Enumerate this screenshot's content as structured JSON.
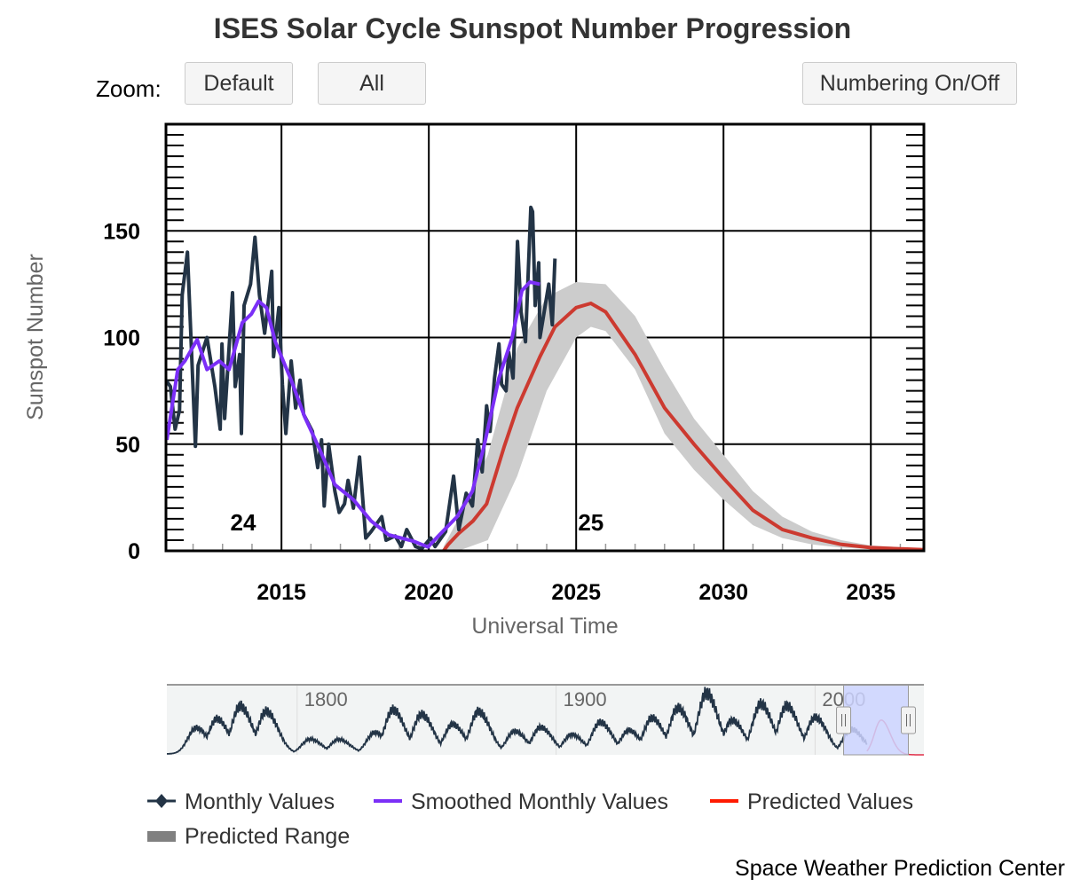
{
  "title": "ISES Solar Cycle Sunspot Number Progression",
  "zoom": {
    "label": "Zoom:",
    "default": "Default",
    "all": "All",
    "numbering": "Numbering On/Off"
  },
  "credit": "Space Weather Prediction Center",
  "colors": {
    "monthly": "#233446",
    "smoothed": "#7b2ff7",
    "predicted": "#cc3a30",
    "range": "#cccccc",
    "legend_predicted": "#ff1a00",
    "legend_range": "#808080",
    "nav_sel": "#ccd3ff"
  },
  "chart_data": {
    "type": "line",
    "title": "ISES Solar Cycle Sunspot Number Progression",
    "xlabel": "Universal Time",
    "ylabel": "Sunspot Number",
    "xlim": [
      2011.08,
      2036.8
    ],
    "ylim": [
      0,
      200
    ],
    "xticks": [
      2015,
      2020,
      2025,
      2030,
      2035
    ],
    "yticks": [
      0,
      50,
      100,
      150
    ],
    "cycle_labels": [
      {
        "text": "24",
        "year": 2013.7
      },
      {
        "text": "25",
        "year": 2025.5
      }
    ],
    "legend": [
      "Monthly Values",
      "Smoothed Monthly Values",
      "Predicted Values",
      "Predicted Range"
    ],
    "legend_placement": "bottom",
    "series": [
      {
        "name": "Monthly Values",
        "points": [
          [
            2011.08,
            80
          ],
          [
            2011.23,
            77
          ],
          [
            2011.39,
            57
          ],
          [
            2011.54,
            66
          ],
          [
            2011.63,
            120
          ],
          [
            2011.81,
            140
          ],
          [
            2012.08,
            49
          ],
          [
            2012.17,
            87
          ],
          [
            2012.47,
            100
          ],
          [
            2012.74,
            77
          ],
          [
            2012.92,
            57
          ],
          [
            2012.98,
            97
          ],
          [
            2013.07,
            62
          ],
          [
            2013.34,
            121
          ],
          [
            2013.43,
            77
          ],
          [
            2013.58,
            92
          ],
          [
            2013.64,
            55
          ],
          [
            2013.73,
            115
          ],
          [
            2013.95,
            125
          ],
          [
            2014.1,
            147
          ],
          [
            2014.25,
            120
          ],
          [
            2014.43,
            102
          ],
          [
            2014.67,
            131
          ],
          [
            2014.73,
            91
          ],
          [
            2014.91,
            114
          ],
          [
            2015.03,
            78
          ],
          [
            2015.15,
            55
          ],
          [
            2015.33,
            89
          ],
          [
            2015.48,
            67
          ],
          [
            2015.63,
            80
          ],
          [
            2015.75,
            64
          ],
          [
            2016.05,
            56
          ],
          [
            2016.23,
            39
          ],
          [
            2016.36,
            52
          ],
          [
            2016.45,
            21
          ],
          [
            2016.6,
            50
          ],
          [
            2016.81,
            28
          ],
          [
            2016.96,
            18
          ],
          [
            2017.14,
            22
          ],
          [
            2017.26,
            33
          ],
          [
            2017.44,
            20
          ],
          [
            2017.65,
            44
          ],
          [
            2017.86,
            6
          ],
          [
            2018.04,
            9
          ],
          [
            2018.4,
            16
          ],
          [
            2018.55,
            5
          ],
          [
            2018.86,
            7
          ],
          [
            2019.07,
            2
          ],
          [
            2019.25,
            10
          ],
          [
            2019.55,
            2
          ],
          [
            2019.76,
            1
          ],
          [
            2020.06,
            6
          ],
          [
            2020.21,
            2
          ],
          [
            2020.57,
            9
          ],
          [
            2020.84,
            35
          ],
          [
            2021.02,
            10
          ],
          [
            2021.27,
            27
          ],
          [
            2021.48,
            21
          ],
          [
            2021.66,
            52
          ],
          [
            2021.81,
            37
          ],
          [
            2021.96,
            68
          ],
          [
            2022.08,
            56
          ],
          [
            2022.23,
            81
          ],
          [
            2022.38,
            97
          ],
          [
            2022.47,
            78
          ],
          [
            2022.62,
            75
          ],
          [
            2022.71,
            93
          ],
          [
            2022.86,
            81
          ],
          [
            2023.01,
            145
          ],
          [
            2023.13,
            112
          ],
          [
            2023.28,
            98
          ],
          [
            2023.46,
            161
          ],
          [
            2023.52,
            159
          ],
          [
            2023.61,
            115
          ],
          [
            2023.73,
            135
          ],
          [
            2023.77,
            100
          ],
          [
            2024.07,
            125
          ],
          [
            2024.19,
            106
          ],
          [
            2024.28,
            137
          ]
        ]
      },
      {
        "name": "Smoothed Monthly Values",
        "points": [
          [
            2011.11,
            52
          ],
          [
            2011.48,
            85
          ],
          [
            2011.72,
            89
          ],
          [
            2012.14,
            99
          ],
          [
            2012.47,
            85
          ],
          [
            2012.89,
            89
          ],
          [
            2013.22,
            85
          ],
          [
            2013.67,
            107
          ],
          [
            2013.98,
            111
          ],
          [
            2014.22,
            117
          ],
          [
            2014.49,
            114
          ],
          [
            2014.79,
            98
          ],
          [
            2015.33,
            80
          ],
          [
            2015.78,
            63
          ],
          [
            2016.3,
            47.5
          ],
          [
            2016.81,
            31
          ],
          [
            2017.44,
            24
          ],
          [
            2018.04,
            14
          ],
          [
            2018.64,
            7.5
          ],
          [
            2019.46,
            4.6
          ],
          [
            2019.97,
            1.8
          ],
          [
            2020.36,
            7.5
          ],
          [
            2020.96,
            16
          ],
          [
            2021.48,
            28
          ],
          [
            2021.87,
            49
          ],
          [
            2022.38,
            81
          ],
          [
            2022.83,
            100
          ],
          [
            2023.16,
            122
          ],
          [
            2023.43,
            126
          ],
          [
            2023.77,
            125
          ]
        ]
      },
      {
        "name": "Predicted Values",
        "points": [
          [
            2020.5,
            0
          ],
          [
            2020.66,
            3
          ],
          [
            2021.0,
            8
          ],
          [
            2021.5,
            14
          ],
          [
            2021.96,
            22
          ],
          [
            2022.56,
            49
          ],
          [
            2023.0,
            67
          ],
          [
            2023.77,
            91
          ],
          [
            2024.28,
            105
          ],
          [
            2025.0,
            114
          ],
          [
            2025.5,
            116
          ],
          [
            2026.0,
            112
          ],
          [
            2027.0,
            92
          ],
          [
            2028.0,
            67
          ],
          [
            2029.0,
            50
          ],
          [
            2030.0,
            34
          ],
          [
            2031.0,
            19
          ],
          [
            2032.0,
            10
          ],
          [
            2033.0,
            6
          ],
          [
            2034.0,
            3
          ],
          [
            2035.0,
            1.5
          ],
          [
            2036.8,
            0.5
          ]
        ]
      },
      {
        "name": "Predicted Range",
        "upper": [
          [
            2020.5,
            2
          ],
          [
            2021,
            15
          ],
          [
            2022,
            45
          ],
          [
            2023,
            95
          ],
          [
            2024,
            119
          ],
          [
            2025,
            126
          ],
          [
            2026,
            125
          ],
          [
            2027,
            110
          ],
          [
            2028,
            85
          ],
          [
            2029,
            62
          ],
          [
            2030,
            45
          ],
          [
            2031,
            28
          ],
          [
            2032,
            16
          ],
          [
            2033,
            9
          ],
          [
            2034,
            5
          ],
          [
            2035,
            2.5
          ],
          [
            2036.8,
            1
          ]
        ],
        "lower": [
          [
            2020.5,
            0
          ],
          [
            2021,
            0
          ],
          [
            2022,
            5
          ],
          [
            2023,
            35
          ],
          [
            2024,
            75
          ],
          [
            2025,
            100
          ],
          [
            2025.5,
            105
          ],
          [
            2026,
            103
          ],
          [
            2027,
            85
          ],
          [
            2028,
            55
          ],
          [
            2029,
            38
          ],
          [
            2030,
            24
          ],
          [
            2031,
            12
          ],
          [
            2032,
            6
          ],
          [
            2033,
            3
          ],
          [
            2034,
            1.5
          ],
          [
            2035,
            0.8
          ],
          [
            2036.8,
            0.3
          ]
        ]
      }
    ],
    "navigator": {
      "xlim": [
        1749.7,
        2042
      ],
      "xticks": [
        1800,
        1900,
        2000
      ],
      "selection": [
        2011,
        2036
      ],
      "cycle_peaks": [
        [
          1761,
          86
        ],
        [
          1769,
          116
        ],
        [
          1778,
          158
        ],
        [
          1788,
          141
        ],
        [
          1805,
          49
        ],
        [
          1816,
          48
        ],
        [
          1830,
          71
        ],
        [
          1837,
          146
        ],
        [
          1848,
          131
        ],
        [
          1860,
          98
        ],
        [
          1870,
          140
        ],
        [
          1884,
          75
        ],
        [
          1894,
          88
        ],
        [
          1906,
          64
        ],
        [
          1917,
          105
        ],
        [
          1928,
          78
        ],
        [
          1937,
          119
        ],
        [
          1947,
          152
        ],
        [
          1958,
          201
        ],
        [
          1968,
          111
        ],
        [
          1979,
          165
        ],
        [
          1989,
          159
        ],
        [
          2000,
          121
        ],
        [
          2014,
          82
        ]
      ],
      "predicted_peak": [
        2025.5,
        115
      ]
    }
  }
}
